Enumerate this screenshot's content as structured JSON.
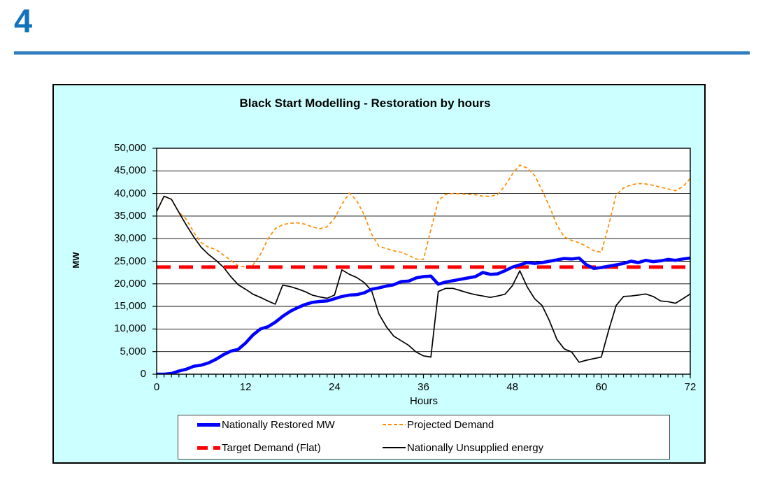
{
  "page": {
    "slide_number": "4",
    "accent_color": "#1173BC"
  },
  "chart": {
    "background_color": "#CCFFFF",
    "plot_background_color": "#FFFFFF",
    "y_tick_labels": [
      "0",
      "5,000",
      "10,000",
      "15,000",
      "20,000",
      "25,000",
      "30,000",
      "35,000",
      "40,000",
      "45,000",
      "50,000"
    ],
    "x_tick_labels": [
      "0",
      "12",
      "24",
      "36",
      "48",
      "60",
      "72"
    ]
  },
  "chart_data": {
    "type": "line",
    "title": "Black Start Modelling - Restoration by hours",
    "xlabel": "Hours",
    "ylabel": "MW",
    "xlim": [
      0,
      72
    ],
    "ylim": [
      0,
      50000
    ],
    "x_major_tick_interval": 12,
    "x_minor_tick_interval": 1,
    "y_tick_interval": 5000,
    "grid": "horizontal",
    "legend_position": "bottom",
    "x": [
      0,
      1,
      2,
      3,
      4,
      5,
      6,
      7,
      8,
      9,
      10,
      11,
      12,
      13,
      14,
      15,
      16,
      17,
      18,
      19,
      20,
      21,
      22,
      23,
      24,
      25,
      26,
      27,
      28,
      29,
      30,
      31,
      32,
      33,
      34,
      35,
      36,
      37,
      38,
      39,
      40,
      41,
      42,
      43,
      44,
      45,
      46,
      47,
      48,
      49,
      50,
      51,
      52,
      53,
      54,
      55,
      56,
      57,
      58,
      59,
      60,
      61,
      62,
      63,
      64,
      65,
      66,
      67,
      68,
      69,
      70,
      71,
      72
    ],
    "series": [
      {
        "name": "Nationally Restored MW",
        "color": "#0000FF",
        "style": "solid",
        "width": 4.5,
        "values": [
          0,
          0,
          150,
          700,
          1100,
          1750,
          2000,
          2500,
          3300,
          4300,
          5100,
          5500,
          6900,
          8700,
          10000,
          10500,
          11500,
          12800,
          13900,
          14700,
          15400,
          15900,
          16100,
          16200,
          16700,
          17200,
          17500,
          17600,
          18000,
          18800,
          19100,
          19500,
          19800,
          20500,
          20600,
          21300,
          21600,
          21700,
          19900,
          20400,
          20700,
          21000,
          21300,
          21600,
          22500,
          22100,
          22200,
          22900,
          23700,
          24200,
          24700,
          24500,
          24700,
          25000,
          25300,
          25600,
          25500,
          25700,
          24200,
          23400,
          23600,
          23900,
          24200,
          24500,
          25000,
          24700,
          25200,
          24900,
          25100,
          25400,
          25200,
          25500,
          25700
        ]
      },
      {
        "name": "Projected Demand",
        "color": "#FF8C00",
        "style": "dashed",
        "width": 1.7,
        "values": [
          36000,
          39400,
          38700,
          35800,
          34300,
          31400,
          29100,
          28100,
          27600,
          26400,
          25200,
          24000,
          23700,
          24200,
          26500,
          29900,
          32200,
          33100,
          33400,
          33500,
          33200,
          32600,
          32200,
          32600,
          34500,
          37600,
          40100,
          38400,
          35300,
          31000,
          28300,
          27800,
          27300,
          27000,
          26300,
          25500,
          25400,
          32000,
          38400,
          39800,
          40000,
          39900,
          39800,
          39700,
          39400,
          39400,
          39700,
          41700,
          44300,
          46300,
          45600,
          44000,
          40700,
          37100,
          33000,
          30400,
          29600,
          29100,
          28300,
          27300,
          27000,
          33000,
          39700,
          41200,
          41900,
          42200,
          42100,
          41800,
          41400,
          41000,
          40600,
          41500,
          43300
        ]
      },
      {
        "name": "Target Demand (Flat)",
        "color": "#FF0000",
        "style": "long-dash",
        "width": 5,
        "flat_value": 23700
      },
      {
        "name": "Nationally Unsupplied energy",
        "color": "#000000",
        "style": "solid",
        "width": 1.7,
        "values": [
          36000,
          39400,
          38700,
          35800,
          33000,
          30400,
          28100,
          26500,
          25200,
          23700,
          21600,
          19800,
          18800,
          17700,
          17000,
          16200,
          15500,
          19700,
          19400,
          18900,
          18300,
          17500,
          17100,
          16800,
          17500,
          23100,
          22100,
          21400,
          20300,
          18500,
          13300,
          10500,
          8400,
          7400,
          6400,
          4900,
          4050,
          3800,
          18300,
          19000,
          19000,
          18500,
          18000,
          17600,
          17300,
          17000,
          17300,
          17700,
          19600,
          22900,
          19300,
          16700,
          15200,
          11800,
          7700,
          5600,
          4900,
          2650,
          3100,
          3450,
          3800,
          9750,
          15200,
          17200,
          17300,
          17500,
          17750,
          17200,
          16200,
          16050,
          15700,
          16700,
          17750
        ]
      }
    ]
  }
}
